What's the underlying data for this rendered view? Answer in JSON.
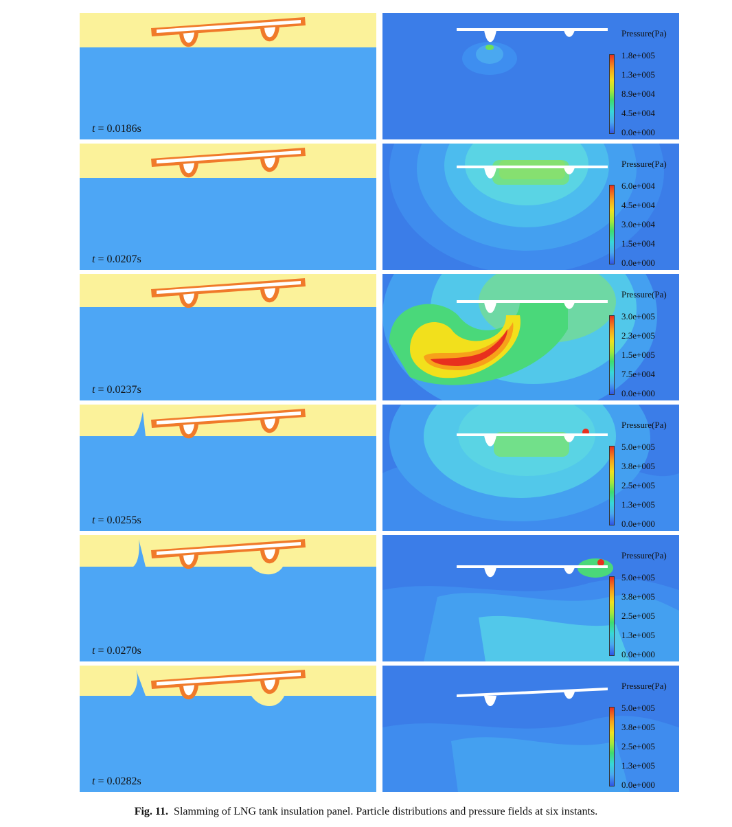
{
  "figure": {
    "caption_label": "Fig. 11.",
    "caption_text": "Slamming of LNG tank insulation panel. Particle distributions and pressure fields at six instants.",
    "colorbar_title": "Pressure(Pa)",
    "colors": {
      "air": "#fbf29a",
      "liquid": "#4da6f5",
      "panel": "#f07a2a",
      "field_background": "#3b7de8",
      "low_pressure": "#2f55e6",
      "high_pressure": "#e8301e"
    },
    "rows": [
      {
        "time_var": "t",
        "time_value": " = 0.0186s",
        "colorbar_ticks": [
          "1.8e+005",
          "1.3e+005",
          "8.9e+004",
          "4.5e+004",
          "0.0e+000"
        ]
      },
      {
        "time_var": "t",
        "time_value": " = 0.0207s",
        "colorbar_ticks": [
          "6.0e+004",
          "4.5e+004",
          "3.0e+004",
          "1.5e+004",
          "0.0e+000"
        ]
      },
      {
        "time_var": "t",
        "time_value": " = 0.0237s",
        "colorbar_ticks": [
          "3.0e+005",
          "2.3e+005",
          "1.5e+005",
          "7.5e+004",
          "0.0e+000"
        ]
      },
      {
        "time_var": "t",
        "time_value": " = 0.0255s",
        "colorbar_ticks": [
          "5.0e+005",
          "3.8e+005",
          "2.5e+005",
          "1.3e+005",
          "0.0e+000"
        ]
      },
      {
        "time_var": "t",
        "time_value": " = 0.0270s",
        "colorbar_ticks": [
          "5.0e+005",
          "3.8e+005",
          "2.5e+005",
          "1.3e+005",
          "0.0e+000"
        ]
      },
      {
        "time_var": "t",
        "time_value": " = 0.0282s",
        "colorbar_ticks": [
          "5.0e+005",
          "3.8e+005",
          "2.5e+005",
          "1.3e+005",
          "0.0e+000"
        ]
      }
    ]
  }
}
